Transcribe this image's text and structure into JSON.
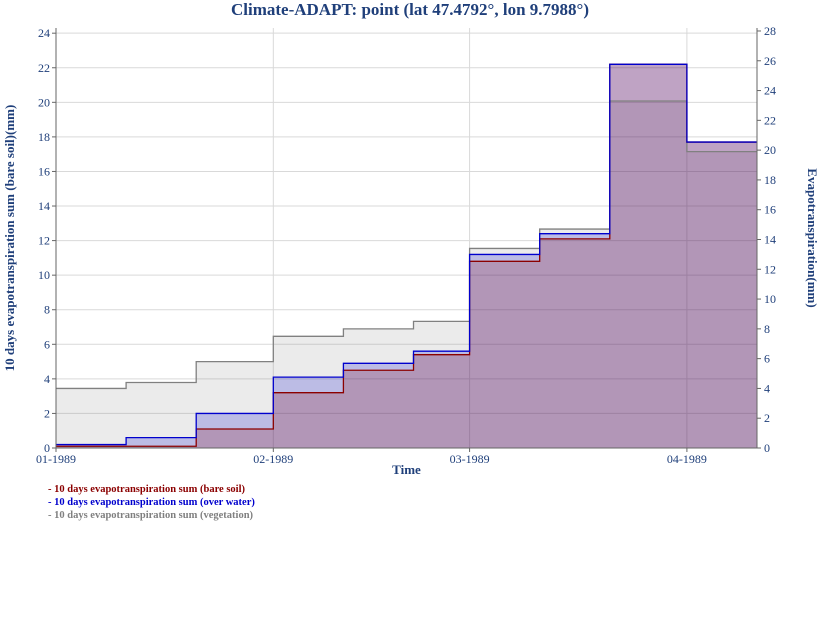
{
  "title": "Climate-ADAPT: point (lat 47.4792°, lon 9.7988°)",
  "chart_data": {
    "type": "area",
    "title": "Climate-ADAPT: point (lat 47.4792°, lon 9.7988°)",
    "xlabel": "Time",
    "ylabel_left": "10 days evapotranspiration sum (bare soil)(mm)",
    "ylabel_right": "Evapotranspiration(mm)",
    "x_ticks": [
      "01-1989",
      "02-1989",
      "03-1989",
      "04-1989"
    ],
    "x_range": [
      "1989-01-01",
      "1989-04-11"
    ],
    "y_left_range": [
      0,
      24.3
    ],
    "y_left_ticks": [
      0,
      2,
      4,
      6,
      8,
      10,
      12,
      14,
      16,
      18,
      20,
      22,
      24
    ],
    "y_right_range": [
      0,
      28.2
    ],
    "y_right_ticks": [
      0,
      2,
      4,
      6,
      8,
      10,
      12,
      14,
      16,
      18,
      20,
      22,
      24,
      26,
      28
    ],
    "grid": true,
    "legend_position": "bottom-left",
    "colors": {
      "bare_soil": "#8b0000",
      "over_water": "#0000cd",
      "vegetation": "#808080",
      "title": "#1f3f7a"
    },
    "periods": [
      "1989-01-01",
      "1989-01-11",
      "1989-01-21",
      "1989-02-01",
      "1989-02-11",
      "1989-02-21",
      "1989-03-01",
      "1989-03-11",
      "1989-03-21",
      "1989-04-01",
      "1989-04-11"
    ],
    "series": [
      {
        "name": "10 days evapotranspiration sum (bare soil)",
        "axis": "left",
        "values": [
          0.1,
          0.1,
          1.1,
          3.2,
          4.5,
          5.4,
          10.8,
          12.1,
          22.2,
          17.7
        ]
      },
      {
        "name": "10 days evapotranspiration sum (over water)",
        "axis": "left",
        "values": [
          0.2,
          0.6,
          2.0,
          4.1,
          4.9,
          5.6,
          11.2,
          12.4,
          22.2,
          17.7
        ]
      },
      {
        "name": "10 days evapotranspiration sum (vegetation)",
        "axis": "right",
        "values": [
          4.0,
          4.4,
          5.8,
          7.5,
          8.0,
          8.5,
          13.4,
          14.7,
          23.3,
          19.9
        ]
      }
    ]
  }
}
